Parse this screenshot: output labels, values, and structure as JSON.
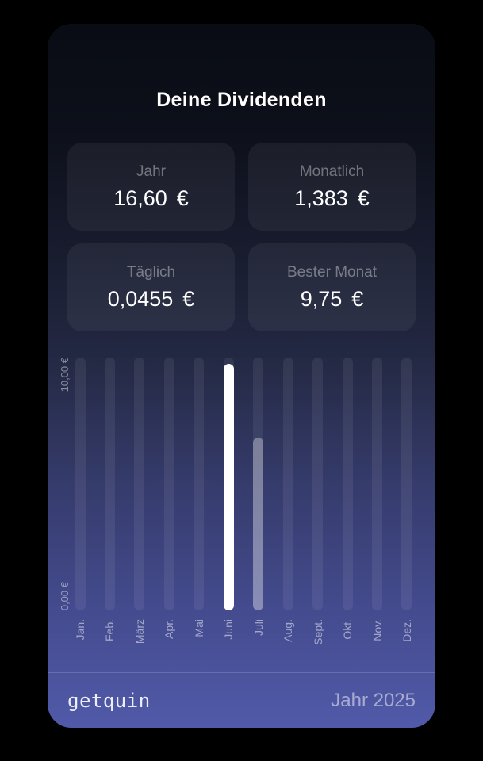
{
  "header": {
    "title": "Deine Dividenden"
  },
  "stats": {
    "items": [
      {
        "label": "Jahr",
        "value": "16,60",
        "currency": "€"
      },
      {
        "label": "Monatlich",
        "value": "1,383",
        "currency": "€"
      },
      {
        "label": "Täglich",
        "value": "0,0455",
        "currency": "€"
      },
      {
        "label": "Bester Monat",
        "value": "9,75",
        "currency": "€"
      }
    ]
  },
  "chart_data": {
    "type": "bar",
    "title": "Deine Dividenden",
    "categories": [
      "Jan.",
      "Feb.",
      "März",
      "Apr.",
      "Mai",
      "Juni",
      "Juli",
      "Aug.",
      "Sept.",
      "Okt.",
      "Nov.",
      "Dez."
    ],
    "values": [
      0,
      0,
      0,
      0,
      0,
      9.75,
      6.85,
      0,
      0,
      0,
      0,
      0
    ],
    "styles": [
      "track",
      "track",
      "track",
      "track",
      "track",
      "solid",
      "translucent",
      "track",
      "track",
      "track",
      "track",
      "track"
    ],
    "xlabel": "",
    "ylabel": "",
    "ylim": [
      0,
      10
    ],
    "yticks": [
      "0,00 €",
      "10,00 €"
    ],
    "grid": false,
    "legend_position": "none"
  },
  "footer": {
    "brand": "getquin",
    "period": "Jahr 2025"
  },
  "colors": {
    "bar_solid": "#ffffff",
    "bar_translucent": "rgba(255,255,255,0.32)",
    "bar_track": "rgba(255,255,255,0.07)",
    "card_gradient_top": "#090c14",
    "card_gradient_bottom": "#515aa9"
  }
}
